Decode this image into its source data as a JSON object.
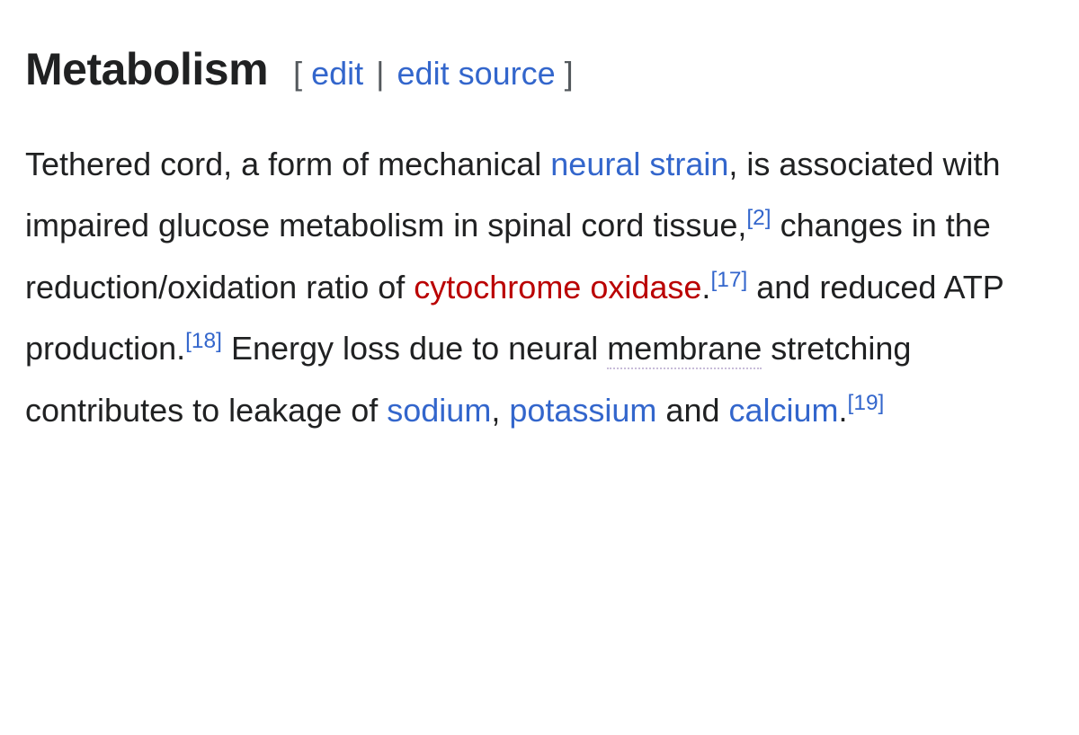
{
  "heading": {
    "title": "Metabolism",
    "bracket_open": "[",
    "bracket_close": "]",
    "edit_label": "edit",
    "pipe": "|",
    "edit_source_label": "edit source"
  },
  "paragraph": {
    "t1": "Tethered cord, a form of mechanical ",
    "link_neural_strain": "neural strain",
    "t2": ", is associated with impaired glucose metabolism in spinal cord tissue,",
    "ref2": "[2]",
    "t3": " changes in the reduction/oxidation ratio of ",
    "link_cytochrome_oxidase": "cytochrome oxidase",
    "t4": ".",
    "ref17": "[17]",
    "t5": " and reduced ATP production.",
    "ref18": "[18]",
    "t6": " Energy loss due to neural ",
    "dotted_membrane": "membrane",
    "t7": " stretching contributes to leakage of ",
    "link_sodium": "sodium",
    "t8": ", ",
    "link_potassium": "potassium",
    "t9": " and ",
    "link_calcium": "calcium",
    "t10": ".",
    "ref19": "[19]"
  }
}
